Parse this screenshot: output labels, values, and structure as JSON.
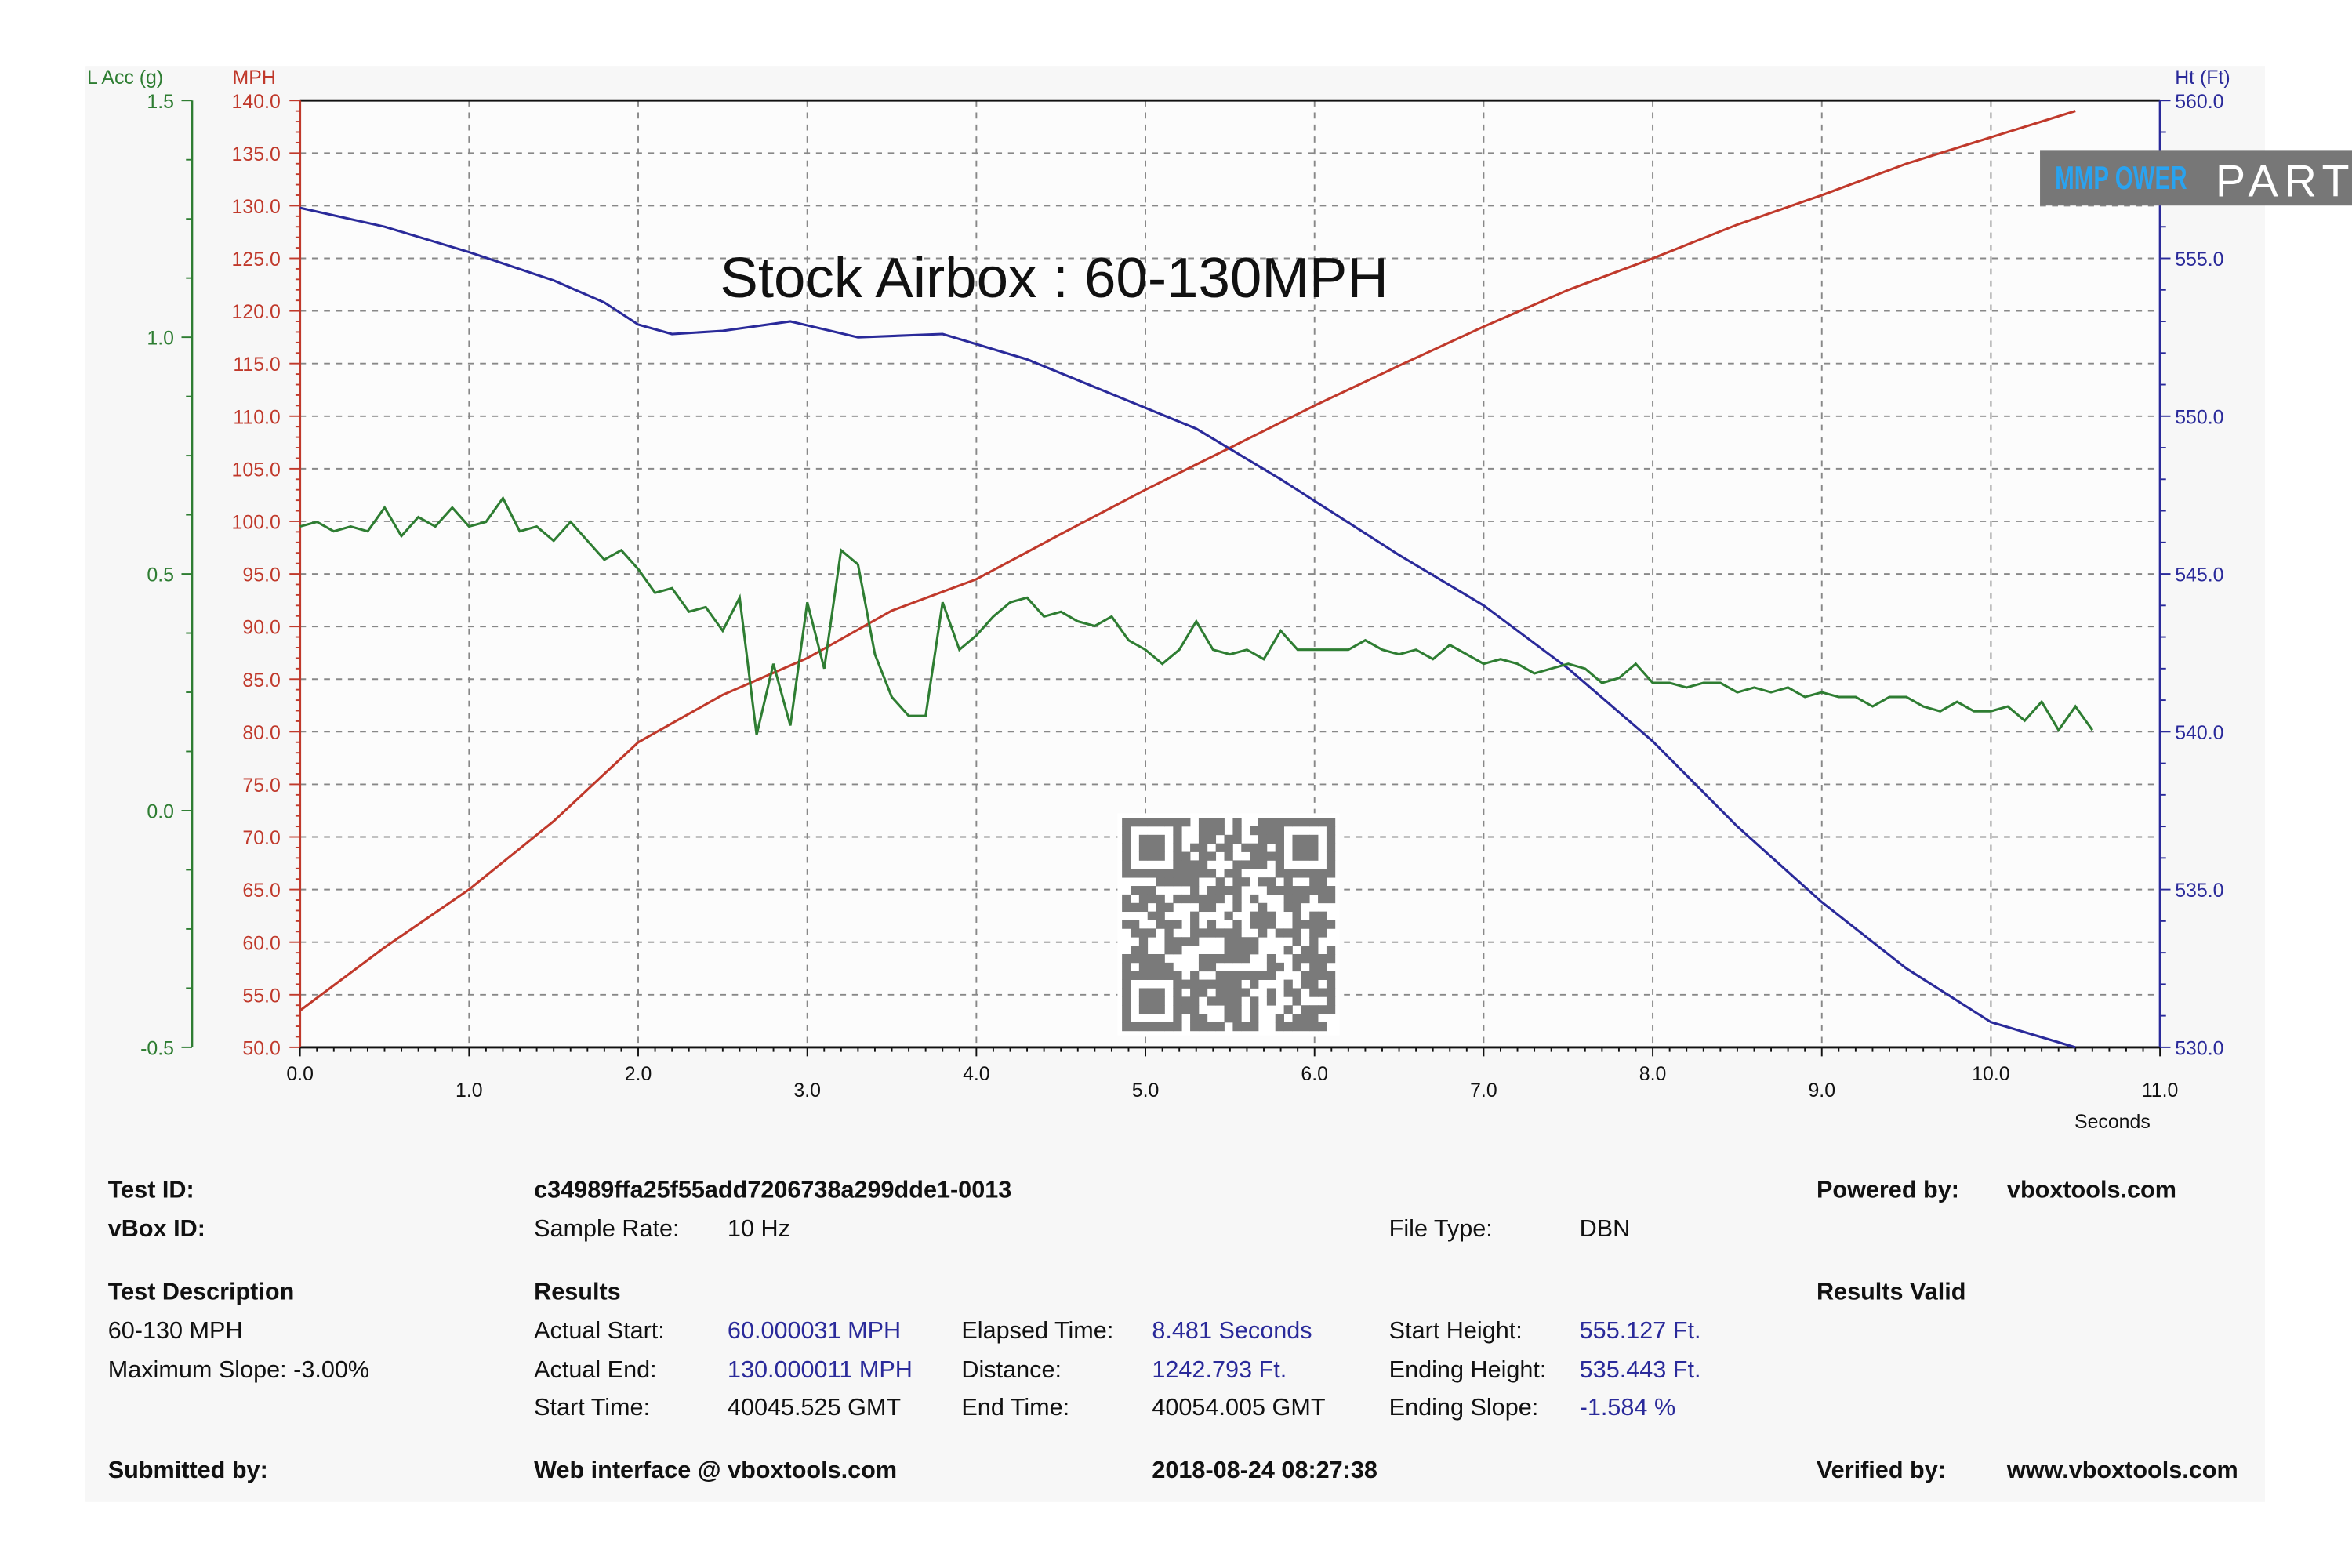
{
  "chart_data": {
    "type": "line",
    "title": "Stock Airbox : 60-130MPH",
    "xlabel": "Seconds",
    "xlim": [
      0,
      11
    ],
    "x_ticks": [
      "0.0",
      "1.0",
      "2.0",
      "3.0",
      "4.0",
      "5.0",
      "6.0",
      "7.0",
      "8.0",
      "9.0",
      "10.0",
      "11.0"
    ],
    "grid": true,
    "axes": {
      "acc": {
        "label": "L Acc (g)",
        "color": "#2e7d32",
        "ylim": [
          -0.5,
          1.5
        ],
        "ticks": [
          "1.5",
          "1.0",
          "0.5",
          "0.0",
          "-0.5"
        ]
      },
      "speed": {
        "label": "MPH",
        "color": "#c0392b",
        "ylim": [
          50,
          140
        ],
        "ticks": [
          "140.0",
          "135.0",
          "130.0",
          "125.0",
          "120.0",
          "115.0",
          "110.0",
          "105.0",
          "100.0",
          "95.0",
          "90.0",
          "85.0",
          "80.0",
          "75.0",
          "70.0",
          "65.0",
          "60.0",
          "55.0",
          "50.0"
        ]
      },
      "height": {
        "label": "Ht (Ft)",
        "color": "#2a2a9a",
        "ylim": [
          530,
          560
        ],
        "ticks": [
          "560.0",
          "555.0",
          "550.0",
          "545.0",
          "540.0",
          "535.0",
          "530.0"
        ]
      }
    },
    "series": [
      {
        "axis": "speed",
        "color": "#c0392b",
        "x": [
          0,
          0.5,
          1,
          1.5,
          2,
          2.5,
          3,
          3.5,
          4,
          4.5,
          5,
          5.5,
          6,
          6.5,
          7,
          7.5,
          8,
          8.5,
          9,
          9.5,
          10,
          10.5
        ],
        "y": [
          53.5,
          59.5,
          65,
          71.5,
          79,
          83.5,
          87,
          91.5,
          94.5,
          98.8,
          103,
          107,
          111,
          114.8,
          118.5,
          122,
          125,
          128.2,
          131,
          134,
          136.5,
          139
        ]
      },
      {
        "axis": "height",
        "color": "#2a2a9a",
        "x": [
          0,
          0.5,
          1,
          1.5,
          1.8,
          2,
          2.2,
          2.5,
          2.9,
          3.3,
          3.8,
          4.3,
          4.8,
          5.3,
          5.8,
          6.5,
          7,
          7.5,
          8,
          8.5,
          9,
          9.5,
          10,
          10.5
        ],
        "y": [
          556.6,
          556,
          555.2,
          554.3,
          553.6,
          552.9,
          552.6,
          552.7,
          553,
          552.5,
          552.6,
          551.8,
          550.7,
          549.6,
          548,
          545.6,
          544,
          542,
          539.7,
          537,
          534.6,
          532.5,
          530.8,
          530
        ]
      },
      {
        "axis": "acc",
        "color": "#2e7d32",
        "x": [
          0,
          0.1,
          0.2,
          0.3,
          0.4,
          0.5,
          0.6,
          0.7,
          0.8,
          0.9,
          1.0,
          1.1,
          1.2,
          1.3,
          1.4,
          1.5,
          1.6,
          1.7,
          1.8,
          1.9,
          2.0,
          2.1,
          2.2,
          2.3,
          2.4,
          2.5,
          2.6,
          2.7,
          2.8,
          2.9,
          3.0,
          3.1,
          3.2,
          3.3,
          3.4,
          3.5,
          3.6,
          3.7,
          3.8,
          3.9,
          4.0,
          4.1,
          4.2,
          4.3,
          4.4,
          4.5,
          4.6,
          4.7,
          4.8,
          4.9,
          5.0,
          5.1,
          5.2,
          5.3,
          5.4,
          5.5,
          5.6,
          5.7,
          5.8,
          5.9,
          6.0,
          6.1,
          6.2,
          6.3,
          6.4,
          6.5,
          6.6,
          6.7,
          6.8,
          6.9,
          7.0,
          7.1,
          7.2,
          7.3,
          7.4,
          7.5,
          7.6,
          7.7,
          7.8,
          7.9,
          8.0,
          8.1,
          8.2,
          8.3,
          8.4,
          8.5,
          8.6,
          8.7,
          8.8,
          8.9,
          9.0,
          9.1,
          9.2,
          9.3,
          9.4,
          9.5,
          9.6,
          9.7,
          9.8,
          9.9,
          10.0,
          10.1,
          10.2,
          10.3,
          10.4,
          10.5,
          10.6
        ],
        "y": [
          0.6,
          0.61,
          0.59,
          0.6,
          0.59,
          0.64,
          0.58,
          0.62,
          0.6,
          0.64,
          0.6,
          0.61,
          0.66,
          0.59,
          0.6,
          0.57,
          0.61,
          0.57,
          0.53,
          0.55,
          0.51,
          0.46,
          0.47,
          0.42,
          0.43,
          0.38,
          0.45,
          0.16,
          0.31,
          0.18,
          0.44,
          0.3,
          0.55,
          0.52,
          0.33,
          0.24,
          0.2,
          0.2,
          0.44,
          0.34,
          0.37,
          0.41,
          0.44,
          0.45,
          0.41,
          0.42,
          0.4,
          0.39,
          0.41,
          0.36,
          0.34,
          0.31,
          0.34,
          0.4,
          0.34,
          0.33,
          0.34,
          0.32,
          0.38,
          0.34,
          0.34,
          0.34,
          0.34,
          0.36,
          0.34,
          0.33,
          0.34,
          0.32,
          0.35,
          0.33,
          0.31,
          0.32,
          0.31,
          0.29,
          0.3,
          0.31,
          0.3,
          0.27,
          0.28,
          0.31,
          0.27,
          0.27,
          0.26,
          0.27,
          0.27,
          0.25,
          0.26,
          0.25,
          0.26,
          0.24,
          0.25,
          0.24,
          0.24,
          0.22,
          0.24,
          0.24,
          0.22,
          0.21,
          0.23,
          0.21,
          0.21,
          0.22,
          0.19,
          0.23,
          0.17,
          0.22,
          0.17
        ]
      }
    ]
  },
  "logo": {
    "brand": "MMP OWER",
    "text": "PARTS"
  },
  "info": {
    "test_id_label": "Test ID:",
    "test_id": "c34989ffa25f55add7206738a299dde1-0013",
    "vbox_id_label": "vBox ID:",
    "sample_rate_label": "Sample Rate:",
    "sample_rate": "10 Hz",
    "file_type_label": "File Type:",
    "file_type": "DBN",
    "powered_label": "Powered by:",
    "powered": "vboxtools.com",
    "test_desc_label": "Test Description",
    "test_desc": "60-130 MPH",
    "max_slope": "Maximum Slope:  -3.00%",
    "results_label": "Results",
    "results_valid": "Results Valid",
    "actual_start_label": "Actual Start:",
    "actual_start": "60.000031 MPH",
    "actual_end_label": "Actual End:",
    "actual_end": "130.000011 MPH",
    "start_time_label": "Start Time:",
    "start_time": "40045.525 GMT",
    "elapsed_label": "Elapsed Time:",
    "elapsed": "8.481 Seconds",
    "distance_label": "Distance:",
    "distance": "1242.793 Ft.",
    "end_time_label": "End Time:",
    "end_time": "40054.005 GMT",
    "start_height_label": "Start Height:",
    "start_height": "555.127 Ft.",
    "ending_height_label": "Ending Height:",
    "ending_height": "535.443 Ft.",
    "ending_slope_label": "Ending Slope:",
    "ending_slope": "-1.584 %",
    "submitted_label": "Submitted by:",
    "submitted": "Web interface @ vboxtools.com",
    "date": "2018-08-24 08:27:38",
    "verified_label": "Verified by:",
    "verified": "www.vboxtools.com"
  }
}
